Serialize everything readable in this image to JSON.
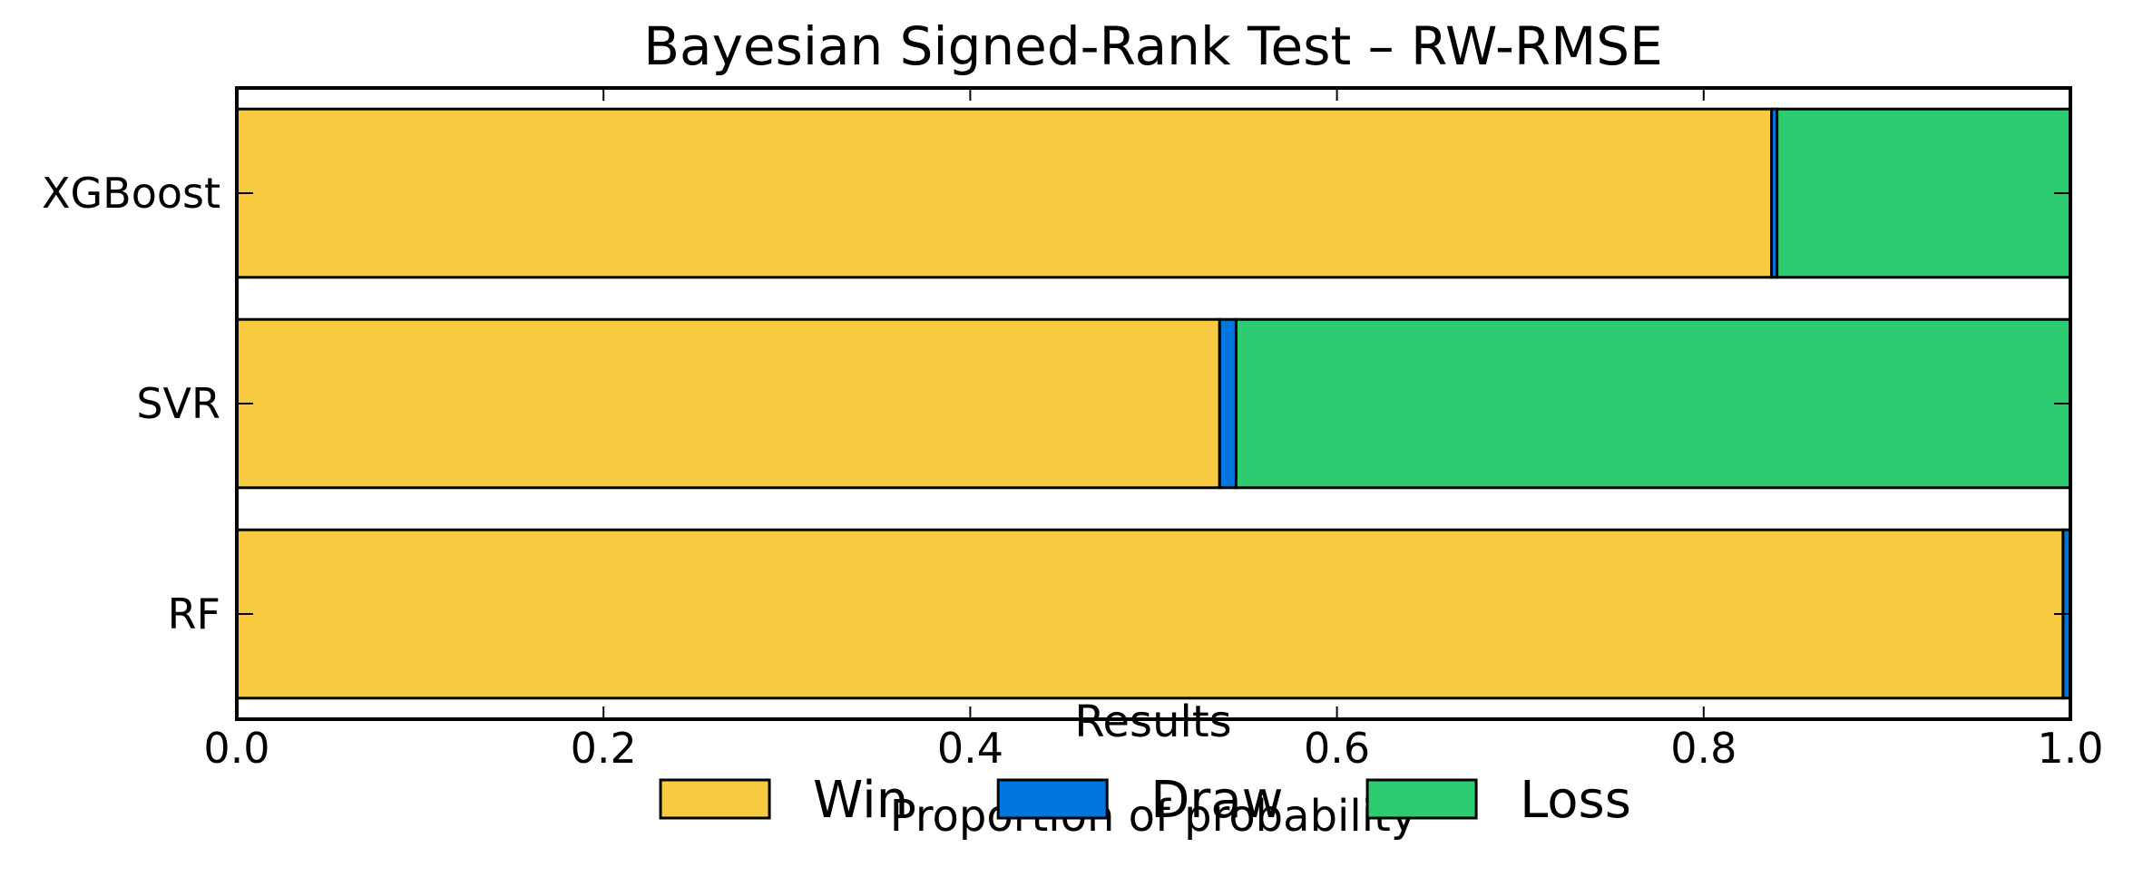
{
  "chart_data": {
    "type": "bar",
    "orientation": "horizontal",
    "stacked": true,
    "title": "Bayesian Signed-Rank Test – RW-RMSE",
    "xlabel": "Proportion of probability",
    "ylabel": "",
    "xlim": [
      0.0,
      1.0
    ],
    "xticks": [
      "0.0",
      "0.2",
      "0.4",
      "0.6",
      "0.8",
      "1.0"
    ],
    "categories": [
      "XGBoost",
      "SVR",
      "RF"
    ],
    "series": [
      {
        "name": "Win",
        "color": "#F7CA42",
        "values": [
          0.837,
          0.536,
          0.996
        ]
      },
      {
        "name": "Draw",
        "color": "#0077DD",
        "values": [
          0.003,
          0.009,
          0.004
        ]
      },
      {
        "name": "Loss",
        "color": "#2ECC71",
        "values": [
          0.16,
          0.455,
          0.0
        ]
      }
    ],
    "legend": {
      "title": "Results",
      "position": "bottom-center",
      "orientation": "horizontal"
    },
    "grid": false
  }
}
